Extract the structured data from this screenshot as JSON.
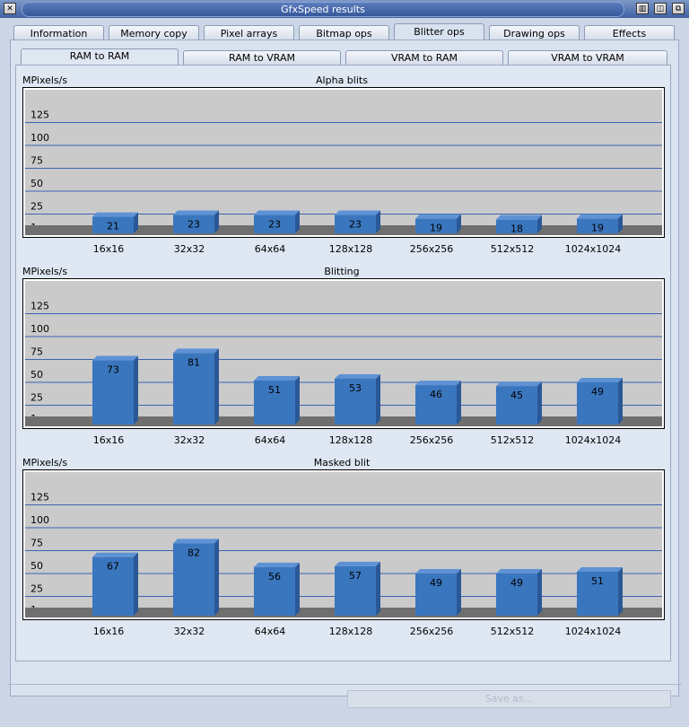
{
  "window": {
    "title": "GfxSpeed results",
    "close_glyph": "✕",
    "btn_glyphs": [
      "▥",
      "◫",
      "⧉"
    ]
  },
  "tabs": [
    {
      "label": "Information"
    },
    {
      "label": "Memory copy"
    },
    {
      "label": "Pixel arrays"
    },
    {
      "label": "Bitmap ops"
    },
    {
      "label": "Blitter ops",
      "active": true
    },
    {
      "label": "Drawing ops"
    },
    {
      "label": "Effects"
    }
  ],
  "subtabs": [
    {
      "label": "RAM to RAM",
      "active": true
    },
    {
      "label": "RAM to VRAM"
    },
    {
      "label": "VRAM to RAM"
    },
    {
      "label": "VRAM to VRAM"
    }
  ],
  "colors": {
    "bar_front": "#3a76be",
    "bar_side": "#2a5896",
    "bar_top": "#5e92d4",
    "plot_bg": "#cacaca",
    "floor": "#6f6f6f",
    "gridline": "#3b64b1"
  },
  "chart_data": [
    {
      "type": "bar",
      "title": "Alpha blits",
      "ylabel": "MPixels/s",
      "categories": [
        "16x16",
        "32x32",
        "64x64",
        "128x128",
        "256x256",
        "512x512",
        "1024x1024"
      ],
      "values": [
        21,
        23,
        23,
        23,
        19,
        18,
        19
      ],
      "yticks": [
        1,
        25,
        50,
        75,
        100,
        125
      ],
      "ylim": [
        1,
        150
      ],
      "grid": true
    },
    {
      "type": "bar",
      "title": "Blitting",
      "ylabel": "MPixels/s",
      "categories": [
        "16x16",
        "32x32",
        "64x64",
        "128x128",
        "256x256",
        "512x512",
        "1024x1024"
      ],
      "values": [
        73,
        81,
        51,
        53,
        46,
        45,
        49
      ],
      "yticks": [
        1,
        25,
        50,
        75,
        100,
        125
      ],
      "ylim": [
        1,
        150
      ],
      "grid": true
    },
    {
      "type": "bar",
      "title": "Masked blit",
      "ylabel": "MPixels/s",
      "categories": [
        "16x16",
        "32x32",
        "64x64",
        "128x128",
        "256x256",
        "512x512",
        "1024x1024"
      ],
      "values": [
        67,
        82,
        56,
        57,
        49,
        49,
        51
      ],
      "yticks": [
        1,
        25,
        50,
        75,
        100,
        125
      ],
      "ylim": [
        1,
        150
      ],
      "grid": true
    }
  ],
  "footer": {
    "save_label": "Save as..."
  }
}
